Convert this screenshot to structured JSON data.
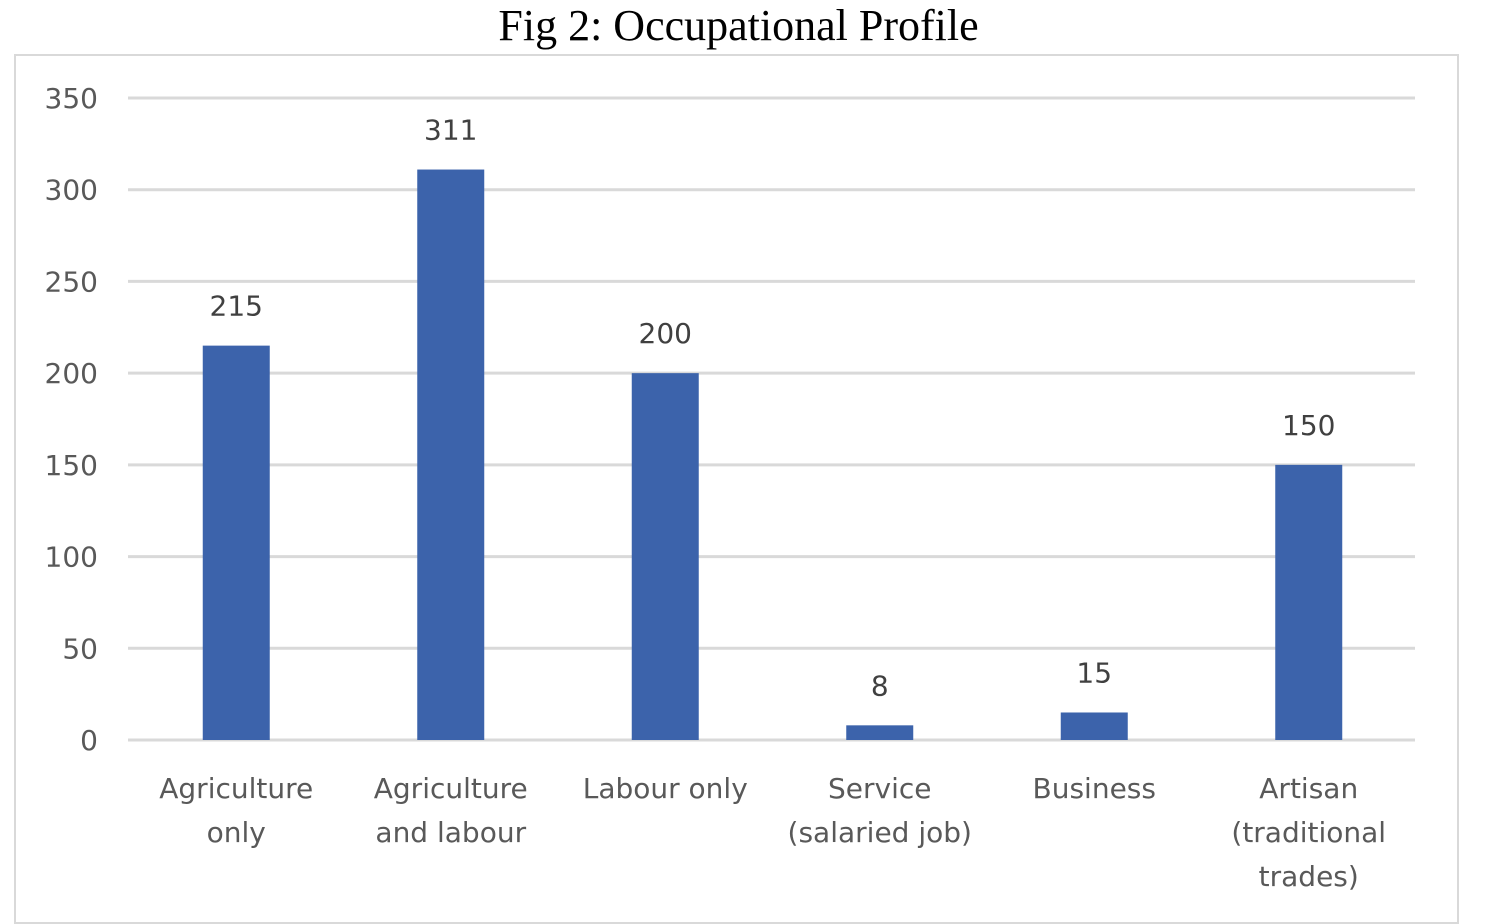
{
  "chart_data": {
    "type": "bar",
    "title": "Fig 2: Occupational Profile",
    "categories": [
      [
        "Agriculture",
        "only"
      ],
      [
        "Agriculture",
        "and labour"
      ],
      [
        "Labour only"
      ],
      [
        "Service",
        "(salaried job)"
      ],
      [
        "Business"
      ],
      [
        "Artisan",
        "(traditional",
        "trades)"
      ]
    ],
    "values": [
      215,
      311,
      200,
      8,
      15,
      150
    ],
    "data_labels": [
      "215",
      "311",
      "200",
      "8",
      "15",
      "150"
    ],
    "ylim": [
      0,
      350
    ],
    "yticks": [
      "0",
      "50",
      "100",
      "150",
      "200",
      "250",
      "300",
      "350"
    ],
    "xlabel": "",
    "ylabel": "",
    "grid": true,
    "bar_color": "#3c63ab",
    "grid_color": "#d9d9d9"
  }
}
